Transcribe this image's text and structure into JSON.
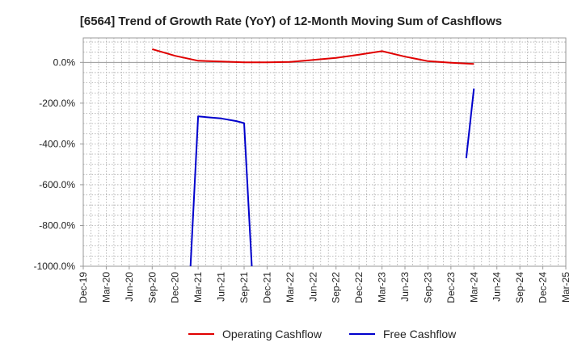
{
  "chart_data": {
    "type": "line",
    "title": "[6564]  Trend of Growth Rate (YoY) of 12-Month Moving Sum of Cashflows",
    "xlabel": "",
    "ylabel": "",
    "x_tick_labels": [
      "Dec-19",
      "Mar-20",
      "Jun-20",
      "Sep-20",
      "Dec-20",
      "Mar-21",
      "Jun-21",
      "Sep-21",
      "Dec-21",
      "Mar-22",
      "Jun-22",
      "Sep-22",
      "Dec-22",
      "Mar-23",
      "Jun-23",
      "Sep-23",
      "Dec-23",
      "Mar-24",
      "Jun-24",
      "Sep-24",
      "Dec-24",
      "Mar-25"
    ],
    "y_tick_labels": [
      "0.0%",
      "-200.0%",
      "-400.0%",
      "-600.0%",
      "-800.0%",
      "-1000.0%"
    ],
    "y_ticks": [
      0,
      -200,
      -400,
      -600,
      -800,
      -1000
    ],
    "ylim": [
      -1000,
      120
    ],
    "grid": true,
    "legend_position": "bottom",
    "series": [
      {
        "name": "Operating Cashflow",
        "color": "#e00000",
        "points": [
          {
            "x": "Sep-20",
            "y": 65
          },
          {
            "x": "Dec-20",
            "y": 32
          },
          {
            "x": "Mar-21",
            "y": 8
          },
          {
            "x": "Jun-21",
            "y": 4
          },
          {
            "x": "Sep-21",
            "y": 0
          },
          {
            "x": "Dec-21",
            "y": 0
          },
          {
            "x": "Mar-22",
            "y": 2
          },
          {
            "x": "Jun-22",
            "y": 12
          },
          {
            "x": "Sep-22",
            "y": 22
          },
          {
            "x": "Dec-22",
            "y": 38
          },
          {
            "x": "Mar-23",
            "y": 55
          },
          {
            "x": "Jun-23",
            "y": 28
          },
          {
            "x": "Sep-23",
            "y": 6
          },
          {
            "x": "Dec-23",
            "y": -2
          },
          {
            "x": "Mar-24",
            "y": -8
          }
        ]
      },
      {
        "name": "Free Cashflow",
        "color": "#0000cc",
        "segments": [
          [
            {
              "x": "Feb-21",
              "y": -1000
            },
            {
              "x": "Mar-21",
              "y": -265
            },
            {
              "x": "Jun-21",
              "y": -275
            },
            {
              "x": "Aug-21",
              "y": -288
            },
            {
              "x": "Sep-21",
              "y": -298
            },
            {
              "x": "Oct-21",
              "y": -1000
            }
          ],
          [
            {
              "x": "Feb-24",
              "y": -470
            },
            {
              "x": "Mar-24",
              "y": -128
            }
          ]
        ]
      }
    ]
  }
}
